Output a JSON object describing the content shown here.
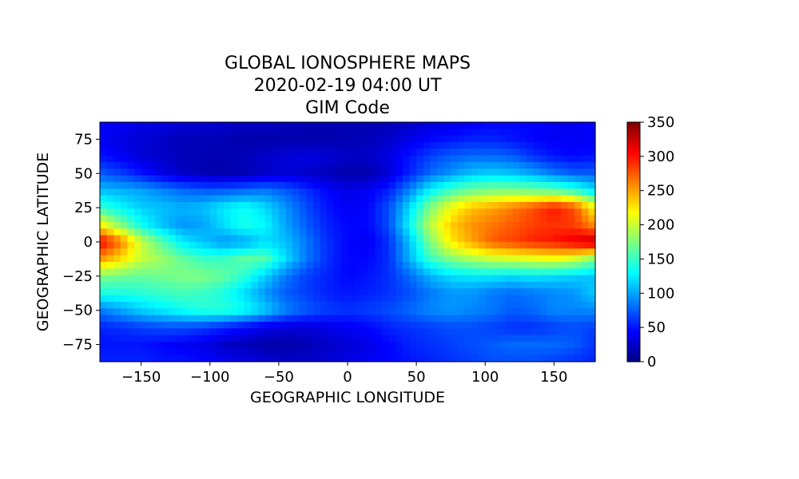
{
  "chart_data": {
    "type": "heatmap",
    "title": [
      "GLOBAL IONOSPHERE MAPS",
      "2020-02-19 04:00 UT",
      "GIM Code"
    ],
    "xlabel": "GEOGRAPHIC LONGITUDE",
    "ylabel": "GEOGRAPHIC LATITUDE",
    "xlim": [
      -180,
      180
    ],
    "ylim": [
      -87.5,
      87.5
    ],
    "x_ticks": [
      -150,
      -100,
      -50,
      0,
      50,
      100,
      150
    ],
    "y_ticks": [
      75,
      50,
      25,
      0,
      -25,
      -50,
      -75
    ],
    "x_tick_labels": [
      "−150",
      "−100",
      "−50",
      "0",
      "50",
      "100",
      "150"
    ],
    "y_tick_labels": [
      "75",
      "50",
      "25",
      "0",
      "−25",
      "−50",
      "−75"
    ],
    "colormap": "jet",
    "colorbar": {
      "min": 0,
      "max": 350,
      "ticks": [
        0,
        50,
        100,
        150,
        200,
        250,
        300,
        350
      ],
      "tick_labels": [
        "0",
        "50",
        "100",
        "150",
        "200",
        "250",
        "300",
        "350"
      ]
    },
    "grid": false,
    "rows_lat": [
      87.5,
      75,
      62.5,
      50,
      37.5,
      25,
      12.5,
      0,
      -12.5,
      -25,
      -37.5,
      -50,
      -62.5,
      -75,
      -87.5
    ],
    "cols_lon": [
      -180,
      -165,
      -150,
      -135,
      -120,
      -105,
      -90,
      -75,
      -60,
      -45,
      -30,
      -15,
      0,
      15,
      30,
      45,
      60,
      75,
      90,
      105,
      120,
      135,
      150,
      165,
      180
    ],
    "values": [
      [
        45,
        40,
        35,
        35,
        30,
        30,
        28,
        25,
        25,
        22,
        20,
        20,
        18,
        18,
        20,
        25,
        30,
        35,
        40,
        45,
        45,
        45,
        40,
        40,
        45
      ],
      [
        40,
        35,
        30,
        25,
        20,
        20,
        18,
        15,
        15,
        15,
        15,
        15,
        18,
        20,
        25,
        35,
        45,
        50,
        55,
        55,
        50,
        45,
        40,
        40,
        40
      ],
      [
        50,
        40,
        30,
        25,
        20,
        18,
        18,
        20,
        25,
        30,
        35,
        30,
        25,
        25,
        35,
        50,
        65,
        75,
        80,
        80,
        75,
        60,
        50,
        45,
        50
      ],
      [
        75,
        65,
        50,
        35,
        25,
        18,
        15,
        18,
        25,
        30,
        25,
        20,
        15,
        15,
        30,
        55,
        80,
        95,
        110,
        115,
        110,
        100,
        85,
        75,
        75
      ],
      [
        110,
        105,
        100,
        90,
        80,
        75,
        75,
        80,
        85,
        75,
        60,
        45,
        35,
        40,
        55,
        90,
        130,
        155,
        170,
        175,
        175,
        170,
        165,
        150,
        120
      ],
      [
        150,
        130,
        115,
        110,
        105,
        110,
        125,
        135,
        120,
        95,
        70,
        50,
        40,
        45,
        70,
        120,
        175,
        215,
        240,
        250,
        265,
        280,
        300,
        280,
        215
      ],
      [
        220,
        175,
        135,
        110,
        95,
        100,
        120,
        140,
        130,
        100,
        75,
        55,
        45,
        45,
        70,
        130,
        195,
        235,
        255,
        265,
        275,
        285,
        290,
        285,
        255
      ],
      [
        310,
        265,
        200,
        160,
        125,
        110,
        95,
        100,
        120,
        110,
        85,
        60,
        45,
        40,
        60,
        110,
        175,
        225,
        250,
        275,
        285,
        295,
        300,
        315,
        330
      ],
      [
        255,
        230,
        200,
        185,
        165,
        150,
        150,
        165,
        160,
        120,
        85,
        60,
        45,
        45,
        60,
        105,
        150,
        175,
        190,
        200,
        205,
        210,
        215,
        205,
        175
      ],
      [
        175,
        170,
        165,
        170,
        175,
        175,
        165,
        145,
        115,
        85,
        65,
        55,
        45,
        50,
        60,
        80,
        105,
        120,
        125,
        125,
        120,
        125,
        120,
        115,
        110
      ],
      [
        140,
        140,
        145,
        150,
        155,
        150,
        140,
        120,
        95,
        75,
        65,
        55,
        50,
        55,
        60,
        70,
        85,
        95,
        95,
        85,
        80,
        85,
        90,
        95,
        115
      ],
      [
        85,
        100,
        115,
        125,
        135,
        145,
        145,
        135,
        115,
        90,
        75,
        65,
        60,
        65,
        70,
        80,
        90,
        95,
        90,
        85,
        75,
        80,
        90,
        90,
        90
      ],
      [
        55,
        60,
        65,
        70,
        70,
        65,
        55,
        45,
        35,
        30,
        30,
        35,
        40,
        45,
        55,
        60,
        65,
        70,
        70,
        65,
        60,
        60,
        65,
        70,
        65
      ],
      [
        50,
        50,
        50,
        45,
        40,
        35,
        25,
        20,
        15,
        15,
        18,
        25,
        30,
        35,
        45,
        55,
        60,
        65,
        70,
        75,
        80,
        80,
        80,
        75,
        60
      ],
      [
        55,
        55,
        55,
        50,
        50,
        45,
        40,
        35,
        30,
        25,
        25,
        30,
        35,
        40,
        45,
        50,
        55,
        60,
        65,
        70,
        70,
        70,
        65,
        60,
        55
      ]
    ]
  }
}
